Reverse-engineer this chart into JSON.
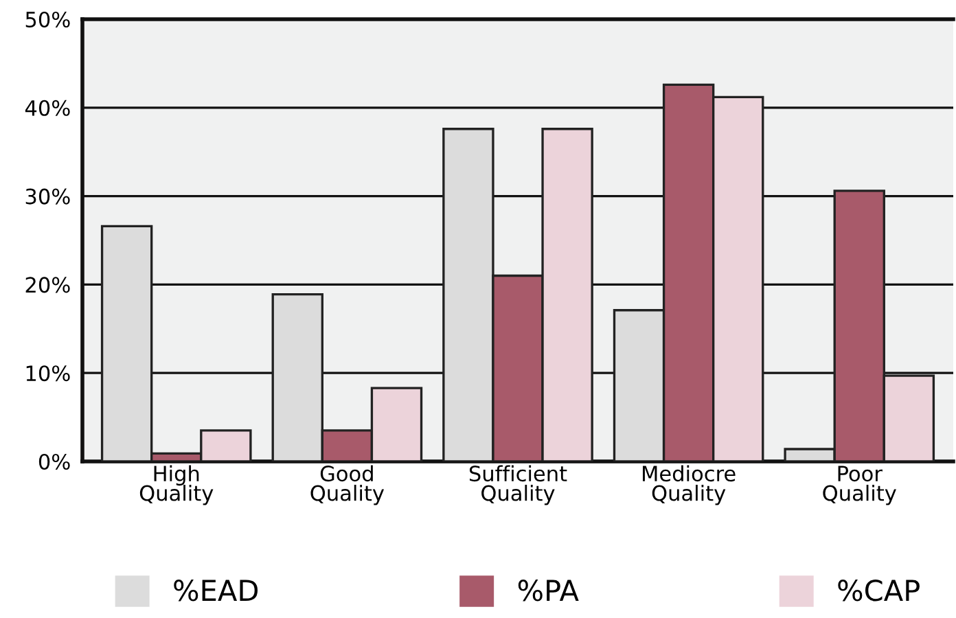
{
  "chart_data": {
    "type": "bar",
    "categories": [
      "High\nQuality",
      "Good\nQuality",
      "Sufficient\nQuality",
      "Mediocre\nQuality",
      "Poor\nQuality"
    ],
    "series": [
      {
        "name": "%EAD",
        "color": "#dcdcdc",
        "values": [
          26.6,
          18.9,
          37.6,
          17.1,
          1.4
        ]
      },
      {
        "name": "%PA",
        "color": "#a85a6a",
        "values": [
          0.9,
          3.5,
          21.0,
          42.6,
          30.6
        ]
      },
      {
        "name": "%CAP",
        "color": "#ecd3da",
        "values": [
          3.5,
          8.3,
          37.6,
          41.2,
          9.7
        ]
      }
    ],
    "ylim": [
      0,
      50
    ],
    "yticks": [
      {
        "value": 0,
        "label": "0%"
      },
      {
        "value": 10,
        "label": "10%"
      },
      {
        "value": 20,
        "label": "20%"
      },
      {
        "value": 30,
        "label": "30%"
      },
      {
        "value": 40,
        "label": "40%"
      },
      {
        "value": 50,
        "label": "50%"
      }
    ],
    "grid": "y",
    "legend": "bottom"
  }
}
